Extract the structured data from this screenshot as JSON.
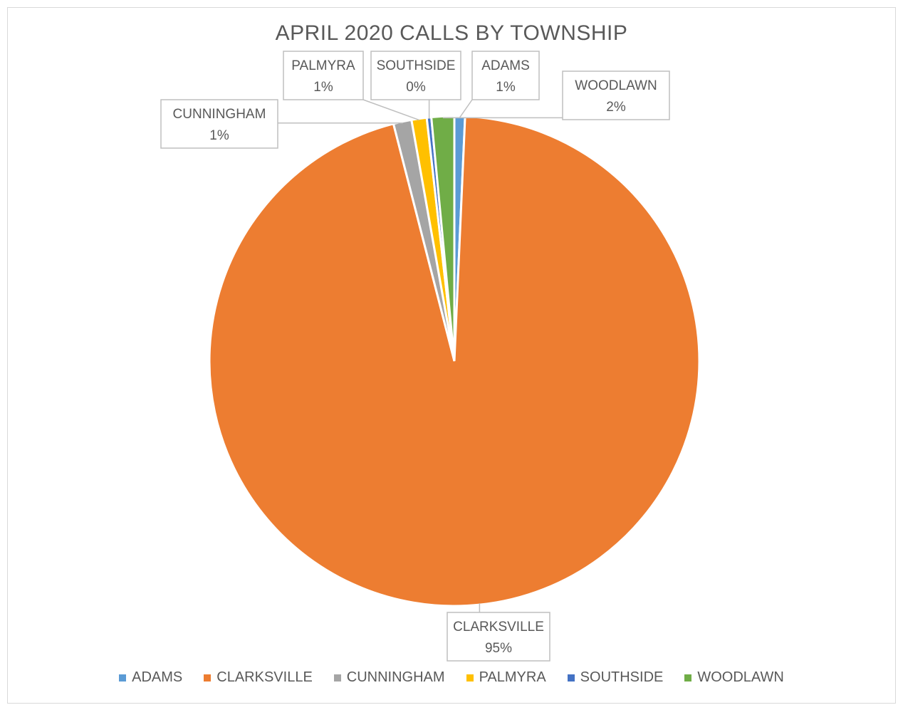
{
  "chart_data": {
    "type": "pie",
    "title": "APRIL 2020 CALLS BY TOWNSHIP",
    "slices": [
      {
        "label": "ADAMS",
        "value": 0.7,
        "percent_label": "1%",
        "color": "#5B9BD5"
      },
      {
        "label": "CLARKSVILLE",
        "value": 95.3,
        "percent_label": "95%",
        "color": "#ED7D31"
      },
      {
        "label": "CUNNINGHAM",
        "value": 1.2,
        "percent_label": "1%",
        "color": "#A5A5A5"
      },
      {
        "label": "PALMYRA",
        "value": 1.0,
        "percent_label": "1%",
        "color": "#FFC000"
      },
      {
        "label": "SOUTHSIDE",
        "value": 0.3,
        "percent_label": "0%",
        "color": "#4472C4"
      },
      {
        "label": "WOODLAWN",
        "value": 1.5,
        "percent_label": "2%",
        "color": "#70AD47"
      }
    ],
    "legend": [
      "ADAMS",
      "CLARKSVILLE",
      "CUNNINGHAM",
      "PALMYRA",
      "SOUTHSIDE",
      "WOODLAWN"
    ],
    "legend_position": "bottom"
  }
}
